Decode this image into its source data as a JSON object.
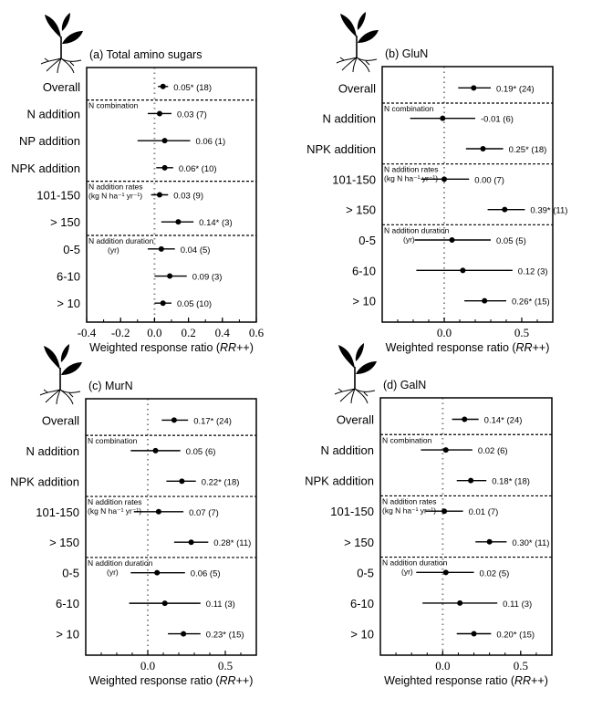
{
  "chart_data": [
    {
      "type": "forest",
      "title": "(a) Total amino sugars",
      "xlabel": "Weighted response ratio (RR++)",
      "xlim": [
        -0.4,
        0.6
      ],
      "xticks": [
        -0.4,
        -0.2,
        0.0,
        0.2,
        0.4,
        0.6
      ],
      "xtick_labels": [
        "-0.4",
        "-0.2",
        "0.0",
        "0.2",
        "0.4",
        "0.6"
      ],
      "reference_line": 0,
      "groups": [
        {
          "label": "",
          "rows": [
            {
              "category": "Overall",
              "value": 0.05,
              "ci": [
                0.02,
                0.08
              ],
              "label": "0.05* (18)"
            }
          ]
        },
        {
          "label": "N combination",
          "sublabel": "",
          "rows": [
            {
              "category": "N addition",
              "value": 0.03,
              "ci": [
                -0.04,
                0.1
              ],
              "label": "0.03 (7)"
            },
            {
              "category": "NP addition",
              "value": 0.06,
              "ci": [
                -0.1,
                0.21
              ],
              "label": "0.06 (1)"
            },
            {
              "category": "NPK addition",
              "value": 0.06,
              "ci": [
                0.01,
                0.11
              ],
              "label": "0.06* (10)"
            }
          ]
        },
        {
          "label": "N addition rates",
          "sublabel": "(kg N ha⁻¹ yr⁻¹)",
          "rows": [
            {
              "category": "101-150",
              "value": 0.03,
              "ci": [
                -0.02,
                0.08
              ],
              "label": "0.03 (9)"
            },
            {
              "category": "> 150",
              "value": 0.14,
              "ci": [
                0.04,
                0.23
              ],
              "label": "0.14* (3)"
            }
          ]
        },
        {
          "label": "N addition duration",
          "sublabel": "(yr)",
          "rows": [
            {
              "category": "0-5",
              "value": 0.04,
              "ci": [
                -0.04,
                0.12
              ],
              "label": "0.04 (5)"
            },
            {
              "category": "6-10",
              "value": 0.09,
              "ci": [
                0.0,
                0.19
              ],
              "label": "0.09 (3)"
            },
            {
              "category": "> 10",
              "value": 0.05,
              "ci": [
                0.0,
                0.1
              ],
              "label": "0.05 (10)"
            }
          ]
        }
      ]
    },
    {
      "type": "forest",
      "title": "(b) GluN",
      "xlabel": "Weighted response ratio (RR++)",
      "xlim": [
        -0.4,
        0.7
      ],
      "xticks": [
        0.0,
        0.5
      ],
      "xtick_labels": [
        "0.0",
        "0.5"
      ],
      "reference_line": 0,
      "groups": [
        {
          "label": "",
          "rows": [
            {
              "category": "Overall",
              "value": 0.19,
              "ci": [
                0.09,
                0.3
              ],
              "label": "0.19* (24)"
            }
          ]
        },
        {
          "label": "N combination",
          "sublabel": "",
          "rows": [
            {
              "category": "N addition",
              "value": -0.01,
              "ci": [
                -0.22,
                0.2
              ],
              "label": "-0.01 (6)"
            },
            {
              "category": "NPK addition",
              "value": 0.25,
              "ci": [
                0.14,
                0.38
              ],
              "label": "0.25* (18)"
            }
          ]
        },
        {
          "label": "N addition rates",
          "sublabel": "(kg N ha⁻¹ yr⁻¹)",
          "rows": [
            {
              "category": "101-150",
              "value": 0.0,
              "ci": [
                -0.15,
                0.16
              ],
              "label": "0.00 (7)"
            },
            {
              "category": "> 150",
              "value": 0.39,
              "ci": [
                0.28,
                0.52
              ],
              "label": "0.39* (11)"
            }
          ]
        },
        {
          "label": "N addition duration",
          "sublabel": "(yr)",
          "rows": [
            {
              "category": "0-5",
              "value": 0.05,
              "ci": [
                -0.19,
                0.3
              ],
              "label": "0.05 (5)"
            },
            {
              "category": "6-10",
              "value": 0.12,
              "ci": [
                -0.18,
                0.44
              ],
              "label": "0.12 (3)"
            },
            {
              "category": "> 10",
              "value": 0.26,
              "ci": [
                0.13,
                0.4
              ],
              "label": "0.26* (15)"
            }
          ]
        }
      ]
    },
    {
      "type": "forest",
      "title": "(c) MurN",
      "xlabel": "Weighted response ratio (RR++)",
      "xlim": [
        -0.4,
        0.7
      ],
      "xticks": [
        0.0,
        0.5
      ],
      "xtick_labels": [
        "0.0",
        "0.5"
      ],
      "reference_line": 0,
      "groups": [
        {
          "label": "",
          "rows": [
            {
              "category": "Overall",
              "value": 0.17,
              "ci": [
                0.09,
                0.26
              ],
              "label": "0.17* (24)"
            }
          ]
        },
        {
          "label": "N combination",
          "sublabel": "",
          "rows": [
            {
              "category": "N addition",
              "value": 0.05,
              "ci": [
                -0.11,
                0.21
              ],
              "label": "0.05 (6)"
            },
            {
              "category": "NPK addition",
              "value": 0.22,
              "ci": [
                0.12,
                0.31
              ],
              "label": "0.22* (18)"
            }
          ]
        },
        {
          "label": "N addition rates",
          "sublabel": "(kg N ha⁻¹ yr⁻¹)",
          "rows": [
            {
              "category": "101-150",
              "value": 0.07,
              "ci": [
                -0.09,
                0.23
              ],
              "label": "0.07 (7)"
            },
            {
              "category": "> 150",
              "value": 0.28,
              "ci": [
                0.17,
                0.39
              ],
              "label": "0.28* (11)"
            }
          ]
        },
        {
          "label": "N addition duration",
          "sublabel": "(yr)",
          "rows": [
            {
              "category": "0-5",
              "value": 0.06,
              "ci": [
                -0.11,
                0.24
              ],
              "label": "0.06 (5)"
            },
            {
              "category": "6-10",
              "value": 0.11,
              "ci": [
                -0.12,
                0.34
              ],
              "label": "0.11 (3)"
            },
            {
              "category": "> 10",
              "value": 0.23,
              "ci": [
                0.13,
                0.34
              ],
              "label": "0.23* (15)"
            }
          ]
        }
      ]
    },
    {
      "type": "forest",
      "title": "(d) GalN",
      "xlabel": "Weighted response ratio (RR++)",
      "xlim": [
        -0.4,
        0.7
      ],
      "xticks": [
        0.0,
        0.5
      ],
      "xtick_labels": [
        "0.0",
        "0.5"
      ],
      "reference_line": 0,
      "groups": [
        {
          "label": "",
          "rows": [
            {
              "category": "Overall",
              "value": 0.14,
              "ci": [
                0.06,
                0.23
              ],
              "label": "0.14* (24)"
            }
          ]
        },
        {
          "label": "N combination",
          "sublabel": "",
          "rows": [
            {
              "category": "N addition",
              "value": 0.02,
              "ci": [
                -0.14,
                0.19
              ],
              "label": "0.02 (6)"
            },
            {
              "category": "NPK addition",
              "value": 0.18,
              "ci": [
                0.09,
                0.28
              ],
              "label": "0.18* (18)"
            }
          ]
        },
        {
          "label": "N addition rates",
          "sublabel": "(kg N ha⁻¹ yr⁻¹)",
          "rows": [
            {
              "category": "101-150",
              "value": 0.01,
              "ci": [
                -0.11,
                0.13
              ],
              "label": "0.01 (7)"
            },
            {
              "category": "> 150",
              "value": 0.3,
              "ci": [
                0.21,
                0.41
              ],
              "label": "0.30* (11)"
            }
          ]
        },
        {
          "label": "N addition duration",
          "sublabel": "(yr)",
          "rows": [
            {
              "category": "0-5",
              "value": 0.02,
              "ci": [
                -0.17,
                0.2
              ],
              "label": "0.02 (5)"
            },
            {
              "category": "6-10",
              "value": 0.11,
              "ci": [
                -0.13,
                0.35
              ],
              "label": "0.11 (3)"
            },
            {
              "category": "> 10",
              "value": 0.2,
              "ci": [
                0.09,
                0.31
              ],
              "label": "0.20* (15)"
            }
          ]
        }
      ]
    }
  ],
  "icons": {
    "panel_icon": "plant-seedling-icon"
  },
  "colors": {
    "ink": "#000000",
    "reference_line": "#888888"
  }
}
